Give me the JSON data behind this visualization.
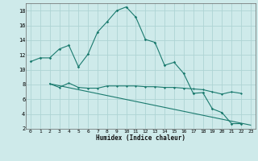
{
  "xlabel": "Humidex (Indice chaleur)",
  "bg_color": "#ceeaea",
  "line_color": "#1a7a6e",
  "grid_color": "#aed4d4",
  "xlim": [
    -0.5,
    23.5
  ],
  "ylim": [
    2,
    19
  ],
  "yticks": [
    2,
    4,
    6,
    8,
    10,
    12,
    14,
    16,
    18
  ],
  "xticks": [
    0,
    1,
    2,
    3,
    4,
    5,
    6,
    7,
    8,
    9,
    10,
    11,
    12,
    13,
    14,
    15,
    16,
    17,
    18,
    19,
    20,
    21,
    22,
    23
  ],
  "curve1_x": [
    0,
    1,
    2,
    3,
    4,
    5,
    6,
    7,
    8,
    9,
    10,
    11,
    12,
    13,
    14,
    15,
    16,
    17,
    18,
    19,
    20,
    21,
    22
  ],
  "curve1_y": [
    11.1,
    11.6,
    11.6,
    12.8,
    13.3,
    10.4,
    12.1,
    15.1,
    16.5,
    18.0,
    18.5,
    17.1,
    14.1,
    13.7,
    10.6,
    11.0,
    9.5,
    6.8,
    6.9,
    4.7,
    4.2,
    2.7,
    2.7
  ],
  "curve2_x": [
    2,
    3,
    4,
    5,
    6,
    7,
    8,
    9,
    10,
    11,
    12,
    13,
    14,
    15,
    16,
    17,
    18,
    19,
    20,
    21,
    22
  ],
  "curve2_y": [
    8.1,
    7.6,
    8.2,
    7.6,
    7.5,
    7.5,
    7.8,
    7.8,
    7.8,
    7.8,
    7.7,
    7.7,
    7.6,
    7.6,
    7.5,
    7.4,
    7.3,
    7.0,
    6.7,
    7.0,
    6.8
  ],
  "curve3_x": [
    2,
    23
  ],
  "curve3_y": [
    8.1,
    2.5
  ]
}
